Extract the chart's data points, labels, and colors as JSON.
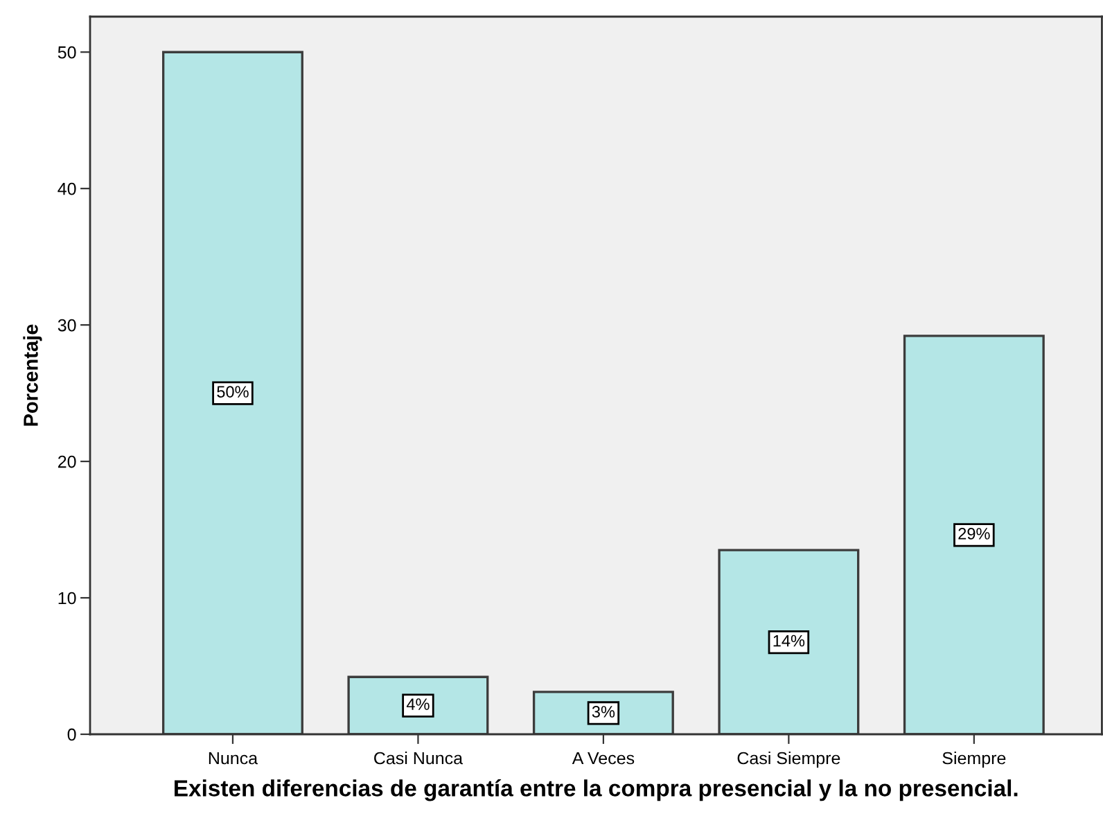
{
  "chart_data": {
    "type": "bar",
    "xlabel": "Existen diferencias de garantía entre la compra presencial y la no presencial.",
    "ylabel": "Porcentaje",
    "categories": [
      "Nunca",
      "Casi Nunca",
      "A Veces",
      "Casi Siempre",
      "Siempre"
    ],
    "values": [
      50,
      4.2,
      3.1,
      13.5,
      29.2
    ],
    "color": "#b4e6e6",
    "value_labels": [
      "50%",
      "4%",
      "3%",
      "14%",
      "29%"
    ],
    "ylim": [
      0,
      52.6
    ],
    "yticks": [
      0,
      10,
      20,
      30,
      40,
      50
    ],
    "grid": false
  }
}
